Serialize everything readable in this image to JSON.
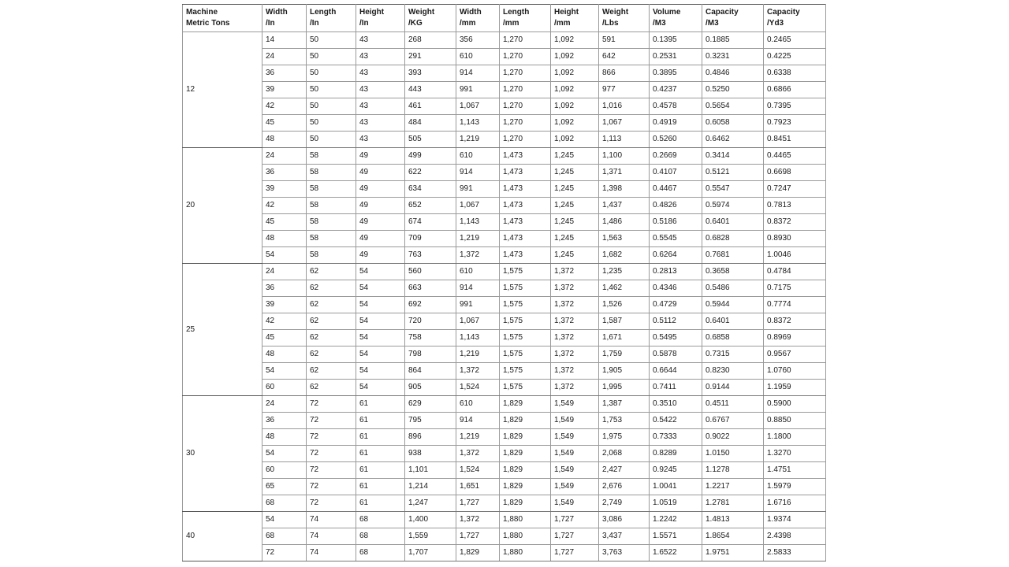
{
  "table": {
    "headers": [
      [
        "Machine",
        "Metric Tons"
      ],
      [
        "Width",
        "/In"
      ],
      [
        "Length",
        "/In"
      ],
      [
        "Height",
        "/In"
      ],
      [
        "Weight",
        "/KG"
      ],
      [
        "Width",
        "/mm"
      ],
      [
        "Length",
        "/mm"
      ],
      [
        "Height",
        "/mm"
      ],
      [
        "Weight",
        "/Lbs"
      ],
      [
        "Volume",
        "/M3"
      ],
      [
        "Capacity",
        "/M3"
      ],
      [
        "Capacity",
        "/Yd3"
      ]
    ],
    "groups": [
      {
        "tons": "12",
        "rows": [
          [
            "14",
            "50",
            "43",
            "268",
            "356",
            "1,270",
            "1,092",
            "591",
            "0.1395",
            "0.1885",
            "0.2465"
          ],
          [
            "24",
            "50",
            "43",
            "291",
            "610",
            "1,270",
            "1,092",
            "642",
            "0.2531",
            "0.3231",
            "0.4225"
          ],
          [
            "36",
            "50",
            "43",
            "393",
            "914",
            "1,270",
            "1,092",
            "866",
            "0.3895",
            "0.4846",
            "0.6338"
          ],
          [
            "39",
            "50",
            "43",
            "443",
            "991",
            "1,270",
            "1,092",
            "977",
            "0.4237",
            "0.5250",
            "0.6866"
          ],
          [
            "42",
            "50",
            "43",
            "461",
            "1,067",
            "1,270",
            "1,092",
            "1,016",
            "0.4578",
            "0.5654",
            "0.7395"
          ],
          [
            "45",
            "50",
            "43",
            "484",
            "1,143",
            "1,270",
            "1,092",
            "1,067",
            "0.4919",
            "0.6058",
            "0.7923"
          ],
          [
            "48",
            "50",
            "43",
            "505",
            "1,219",
            "1,270",
            "1,092",
            "1,113",
            "0.5260",
            "0.6462",
            "0.8451"
          ]
        ]
      },
      {
        "tons": "20",
        "rows": [
          [
            "24",
            "58",
            "49",
            "499",
            "610",
            "1,473",
            "1,245",
            "1,100",
            "0.2669",
            "0.3414",
            "0.4465"
          ],
          [
            "36",
            "58",
            "49",
            "622",
            "914",
            "1,473",
            "1,245",
            "1,371",
            "0.4107",
            "0.5121",
            "0.6698"
          ],
          [
            "39",
            "58",
            "49",
            "634",
            "991",
            "1,473",
            "1,245",
            "1,398",
            "0.4467",
            "0.5547",
            "0.7247"
          ],
          [
            "42",
            "58",
            "49",
            "652",
            "1,067",
            "1,473",
            "1,245",
            "1,437",
            "0.4826",
            "0.5974",
            "0.7813"
          ],
          [
            "45",
            "58",
            "49",
            "674",
            "1,143",
            "1,473",
            "1,245",
            "1,486",
            "0.5186",
            "0.6401",
            "0.8372"
          ],
          [
            "48",
            "58",
            "49",
            "709",
            "1,219",
            "1,473",
            "1,245",
            "1,563",
            "0.5545",
            "0.6828",
            "0.8930"
          ],
          [
            "54",
            "58",
            "49",
            "763",
            "1,372",
            "1,473",
            "1,245",
            "1,682",
            "0.6264",
            "0.7681",
            "1.0046"
          ]
        ]
      },
      {
        "tons": "25",
        "rows": [
          [
            "24",
            "62",
            "54",
            "560",
            "610",
            "1,575",
            "1,372",
            "1,235",
            "0.2813",
            "0.3658",
            "0.4784"
          ],
          [
            "36",
            "62",
            "54",
            "663",
            "914",
            "1,575",
            "1,372",
            "1,462",
            "0.4346",
            "0.5486",
            "0.7175"
          ],
          [
            "39",
            "62",
            "54",
            "692",
            "991",
            "1,575",
            "1,372",
            "1,526",
            "0.4729",
            "0.5944",
            "0.7774"
          ],
          [
            "42",
            "62",
            "54",
            "720",
            "1,067",
            "1,575",
            "1,372",
            "1,587",
            "0.5112",
            "0.6401",
            "0.8372"
          ],
          [
            "45",
            "62",
            "54",
            "758",
            "1,143",
            "1,575",
            "1,372",
            "1,671",
            "0.5495",
            "0.6858",
            "0.8969"
          ],
          [
            "48",
            "62",
            "54",
            "798",
            "1,219",
            "1,575",
            "1,372",
            "1,759",
            "0.5878",
            "0.7315",
            "0.9567"
          ],
          [
            "54",
            "62",
            "54",
            "864",
            "1,372",
            "1,575",
            "1,372",
            "1,905",
            "0.6644",
            "0.8230",
            "1.0760"
          ],
          [
            "60",
            "62",
            "54",
            "905",
            "1,524",
            "1,575",
            "1,372",
            "1,995",
            "0.7411",
            "0.9144",
            "1.1959"
          ]
        ]
      },
      {
        "tons": "30",
        "rows": [
          [
            "24",
            "72",
            "61",
            "629",
            "610",
            "1,829",
            "1,549",
            "1,387",
            "0.3510",
            "0.4511",
            "0.5900"
          ],
          [
            "36",
            "72",
            "61",
            "795",
            "914",
            "1,829",
            "1,549",
            "1,753",
            "0.5422",
            "0.6767",
            "0.8850"
          ],
          [
            "48",
            "72",
            "61",
            "896",
            "1,219",
            "1,829",
            "1,549",
            "1,975",
            "0.7333",
            "0.9022",
            "1.1800"
          ],
          [
            "54",
            "72",
            "61",
            "938",
            "1,372",
            "1,829",
            "1,549",
            "2,068",
            "0.8289",
            "1.0150",
            "1.3270"
          ],
          [
            "60",
            "72",
            "61",
            "1,101",
            "1,524",
            "1,829",
            "1,549",
            "2,427",
            "0.9245",
            "1.1278",
            "1.4751"
          ],
          [
            "65",
            "72",
            "61",
            "1,214",
            "1,651",
            "1,829",
            "1,549",
            "2,676",
            "1.0041",
            "1.2217",
            "1.5979"
          ],
          [
            "68",
            "72",
            "61",
            "1,247",
            "1,727",
            "1,829",
            "1,549",
            "2,749",
            "1.0519",
            "1.2781",
            "1.6716"
          ]
        ]
      },
      {
        "tons": "40",
        "rows": [
          [
            "54",
            "74",
            "68",
            "1,400",
            "1,372",
            "1,880",
            "1,727",
            "3,086",
            "1.2242",
            "1.4813",
            "1.9374"
          ],
          [
            "68",
            "74",
            "68",
            "1,559",
            "1,727",
            "1,880",
            "1,727",
            "3,437",
            "1.5571",
            "1.8654",
            "2.4398"
          ],
          [
            "72",
            "74",
            "68",
            "1,707",
            "1,829",
            "1,880",
            "1,727",
            "3,763",
            "1.6522",
            "1.9751",
            "2.5833"
          ]
        ]
      }
    ]
  }
}
